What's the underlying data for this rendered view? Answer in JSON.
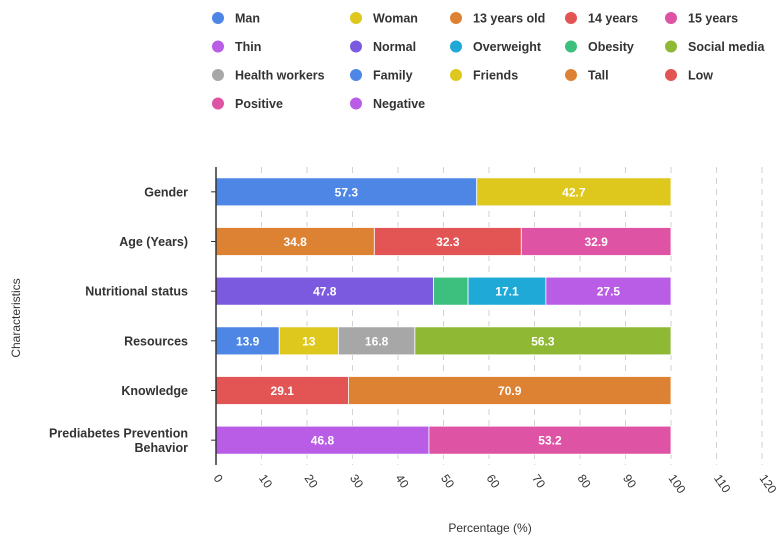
{
  "chart_data": {
    "type": "bar",
    "orientation": "horizontal",
    "stacked": true,
    "xlabel": "Percentage (%)",
    "ylabel": "Characteristics",
    "xlim": [
      0,
      120
    ],
    "xticks": [
      "0",
      "10",
      "20",
      "30",
      "40",
      "50",
      "60",
      "70",
      "80",
      "90",
      "100",
      "110",
      "120"
    ],
    "grid": "vertical dashed",
    "legend_position": "top",
    "legend": [
      {
        "name": "Man",
        "color": "#4e86e6"
      },
      {
        "name": "Woman",
        "color": "#dec81e"
      },
      {
        "name": "13 years old",
        "color": "#dd8233"
      },
      {
        "name": "14 years",
        "color": "#e35454"
      },
      {
        "name": "15 years",
        "color": "#de53a4"
      },
      {
        "name": "Thin",
        "color": "#b95ce6"
      },
      {
        "name": "Normal",
        "color": "#7c5ae0"
      },
      {
        "name": "Overweight",
        "color": "#1fa9d6"
      },
      {
        "name": "Obesity",
        "color": "#3dc07e"
      },
      {
        "name": "Social media",
        "color": "#8fb935"
      },
      {
        "name": "Health workers",
        "color": "#a7a7a7"
      },
      {
        "name": "Family",
        "color": "#4e86e6"
      },
      {
        "name": "Friends",
        "color": "#dec81e"
      },
      {
        "name": "Tall",
        "color": "#dd8233"
      },
      {
        "name": "Low",
        "color": "#e35454"
      },
      {
        "name": "Positive",
        "color": "#de53a4"
      },
      {
        "name": "Negative",
        "color": "#b95ce6"
      }
    ],
    "categories": [
      {
        "label": [
          "Gender"
        ],
        "segments": [
          {
            "series": "Man",
            "value": 57.3,
            "color": "#4e86e6",
            "label": "57.3"
          },
          {
            "series": "Woman",
            "value": 42.7,
            "color": "#dec81e",
            "label": "42.7"
          }
        ]
      },
      {
        "label": [
          "Age (Years)"
        ],
        "segments": [
          {
            "series": "13 years old",
            "value": 34.8,
            "color": "#dd8233",
            "label": "34.8"
          },
          {
            "series": "14 years",
            "value": 32.3,
            "color": "#e35454",
            "label": "32.3"
          },
          {
            "series": "15 years",
            "value": 32.9,
            "color": "#de53a4",
            "label": "32.9"
          }
        ]
      },
      {
        "label": [
          "Nutritional status"
        ],
        "segments": [
          {
            "series": "Normal",
            "value": 47.8,
            "color": "#7c5ae0",
            "label": "47.8"
          },
          {
            "series": "Obesity",
            "value": 7.6,
            "color": "#3dc07e",
            "label": ""
          },
          {
            "series": "Overweight",
            "value": 17.1,
            "color": "#1fa9d6",
            "label": "17.1"
          },
          {
            "series": "Thin",
            "value": 27.5,
            "color": "#b95ce6",
            "label": "27.5"
          }
        ]
      },
      {
        "label": [
          "Resources"
        ],
        "segments": [
          {
            "series": "Family",
            "value": 13.9,
            "color": "#4e86e6",
            "label": "13.9"
          },
          {
            "series": "Friends",
            "value": 13,
            "color": "#dec81e",
            "label": "13"
          },
          {
            "series": "Health workers",
            "value": 16.8,
            "color": "#a7a7a7",
            "label": "16.8"
          },
          {
            "series": "Social media",
            "value": 56.3,
            "color": "#8fb935",
            "label": "56.3"
          }
        ]
      },
      {
        "label": [
          "Knowledge"
        ],
        "segments": [
          {
            "series": "Low",
            "value": 29.1,
            "color": "#e35454",
            "label": "29.1"
          },
          {
            "series": "Tall",
            "value": 70.9,
            "color": "#dd8233",
            "label": "70.9"
          }
        ]
      },
      {
        "label": [
          "Prediabetes Prevention",
          "Behavior"
        ],
        "segments": [
          {
            "series": "Negative",
            "value": 46.8,
            "color": "#b95ce6",
            "label": "46.8"
          },
          {
            "series": "Positive",
            "value": 53.2,
            "color": "#de53a4",
            "label": "53.2"
          }
        ]
      }
    ]
  }
}
